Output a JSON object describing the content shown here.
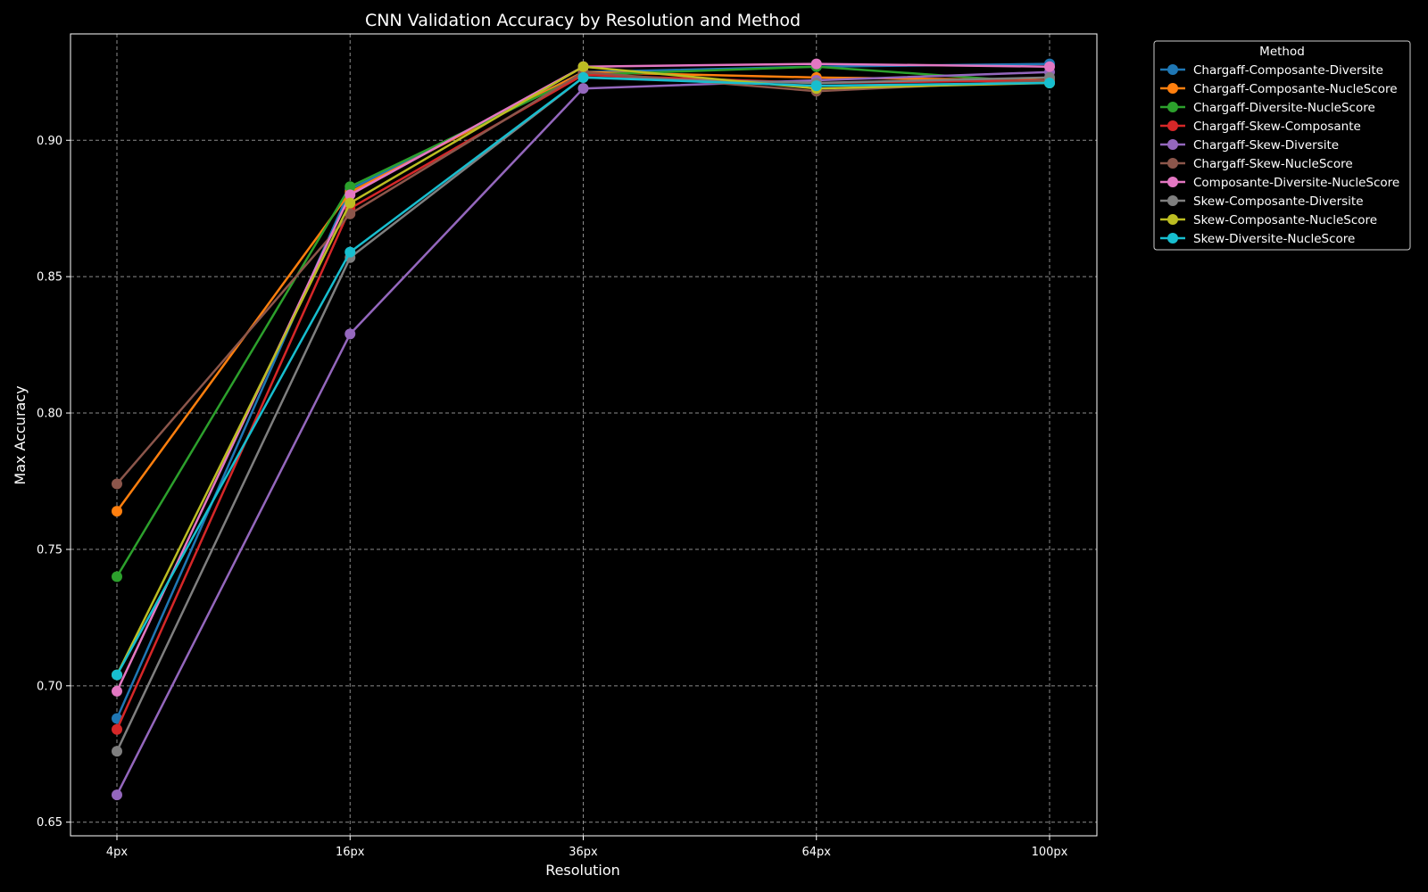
{
  "chart_data": {
    "type": "line",
    "title": "CNN Validation Accuracy by Resolution and Method",
    "xlabel": "Resolution",
    "ylabel": "Max Accuracy",
    "categories": [
      "4px",
      "16px",
      "36px",
      "64px",
      "100px"
    ],
    "ylim": [
      0.645,
      0.939
    ],
    "yticks": [
      0.65,
      0.7,
      0.75,
      0.8,
      0.85,
      0.9
    ],
    "ytick_labels": [
      "0.65",
      "0.70",
      "0.75",
      "0.80",
      "0.85",
      "0.90"
    ],
    "grid": true,
    "legend_title": "Method",
    "legend_position": "outside-top-right",
    "series": [
      {
        "name": "Chargaff-Composante-Diversite",
        "color": "#1f77b4",
        "values": [
          0.688,
          0.882,
          0.925,
          0.927,
          0.928
        ]
      },
      {
        "name": "Chargaff-Composante-NucleScore",
        "color": "#ff7f0e",
        "values": [
          0.764,
          0.881,
          0.925,
          0.923,
          0.922
        ]
      },
      {
        "name": "Chargaff-Diversite-NucleScore",
        "color": "#2ca02c",
        "values": [
          0.74,
          0.883,
          0.924,
          0.927,
          0.921
        ]
      },
      {
        "name": "Chargaff-Skew-Composante",
        "color": "#d62728",
        "values": [
          0.684,
          0.875,
          0.924,
          0.921,
          0.922
        ]
      },
      {
        "name": "Chargaff-Skew-Diversite",
        "color": "#9467bd",
        "values": [
          0.66,
          0.829,
          0.919,
          0.922,
          0.925
        ]
      },
      {
        "name": "Chargaff-Skew-NucleScore",
        "color": "#8c564b",
        "values": [
          0.774,
          0.873,
          0.925,
          0.918,
          0.922
        ]
      },
      {
        "name": "Composante-Diversite-NucleScore",
        "color": "#e377c2",
        "values": [
          0.698,
          0.88,
          0.927,
          0.928,
          0.927
        ]
      },
      {
        "name": "Skew-Composante-Diversite",
        "color": "#7f7f7f",
        "values": [
          0.676,
          0.857,
          0.923,
          0.921,
          0.923
        ]
      },
      {
        "name": "Skew-Composante-NucleScore",
        "color": "#bcbd22",
        "values": [
          0.704,
          0.877,
          0.927,
          0.919,
          0.921
        ]
      },
      {
        "name": "Skew-Diversite-NucleScore",
        "color": "#17becf",
        "values": [
          0.704,
          0.859,
          0.923,
          0.92,
          0.921
        ]
      }
    ]
  }
}
